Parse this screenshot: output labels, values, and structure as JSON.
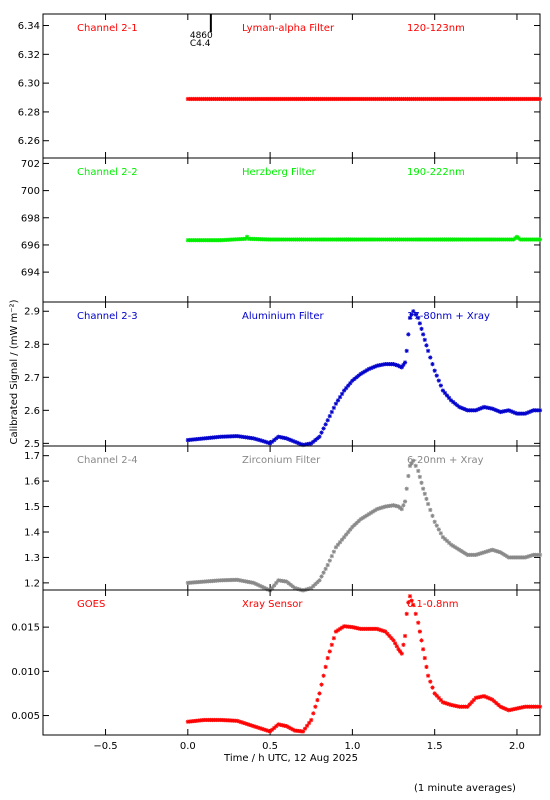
{
  "chart_data": {
    "type": "scatter",
    "xlabel": "Time / h UTC, 12 Aug 2025",
    "ylabel": "Calibrated Signal / (mW m⁻²)",
    "footnote": "(1 minute averages)",
    "xlim": [
      -0.88,
      2.14
    ],
    "xticks": [
      -0.5,
      0.0,
      0.5,
      1.0,
      1.5,
      2.0
    ],
    "xticklabels": [
      "−0.5",
      "0.0",
      "0.5",
      "1.0",
      "1.5",
      "2.0"
    ],
    "marker": "asterisk",
    "annotation": {
      "x": 0.14,
      "y": 6.347,
      "lines": [
        "4860",
        "C4.4"
      ]
    },
    "panels": [
      {
        "channel": "Channel 2-1",
        "filter": "Lyman-alpha Filter",
        "band": "120-123nm",
        "color": "#ff0000",
        "ylim": [
          6.248,
          6.348
        ],
        "yticks": [
          6.26,
          6.28,
          6.3,
          6.32,
          6.34
        ],
        "yticklabels": [
          "6.26",
          "6.28",
          "6.30",
          "6.32",
          "6.34"
        ],
        "series": {
          "x": [
            0.0,
            2.14
          ],
          "y": [
            6.289,
            6.289
          ]
        }
      },
      {
        "channel": "Channel 2-2",
        "filter": "Herzberg Filter",
        "band": "190-222nm",
        "color": "#00ee00",
        "ylim": [
          691.8,
          702.4
        ],
        "yticks": [
          694,
          696,
          698,
          700,
          702
        ],
        "yticklabels": [
          "694",
          "696",
          "698",
          "700",
          "702"
        ],
        "series": {
          "x": [
            0.0,
            0.2,
            0.35,
            0.36,
            0.37,
            0.5,
            1.0,
            1.5,
            1.98,
            2.0,
            2.02,
            2.14
          ],
          "y": [
            696.35,
            696.35,
            696.45,
            696.6,
            696.45,
            696.4,
            696.4,
            696.4,
            696.4,
            696.6,
            696.4,
            696.4
          ]
        }
      },
      {
        "channel": "Channel 2-3",
        "filter": "Aluminium Filter",
        "band": "17-80nm + Xray",
        "color": "#0000cc",
        "ylim": [
          2.492,
          2.928
        ],
        "yticks": [
          2.5,
          2.6,
          2.7,
          2.8,
          2.9
        ],
        "yticklabels": [
          "2.5",
          "2.6",
          "2.7",
          "2.8",
          "2.9"
        ],
        "series": {
          "x": [
            0.0,
            0.1,
            0.2,
            0.3,
            0.4,
            0.45,
            0.5,
            0.55,
            0.6,
            0.65,
            0.7,
            0.75,
            0.8,
            0.85,
            0.9,
            0.95,
            1.0,
            1.05,
            1.1,
            1.15,
            1.2,
            1.25,
            1.28,
            1.3,
            1.32,
            1.33,
            1.34,
            1.35,
            1.37,
            1.4,
            1.43,
            1.46,
            1.5,
            1.55,
            1.6,
            1.65,
            1.7,
            1.75,
            1.8,
            1.85,
            1.9,
            1.95,
            2.0,
            2.05,
            2.1,
            2.14
          ],
          "y": [
            2.51,
            2.515,
            2.52,
            2.522,
            2.515,
            2.508,
            2.5,
            2.52,
            2.515,
            2.505,
            2.495,
            2.5,
            2.52,
            2.57,
            2.62,
            2.66,
            2.69,
            2.71,
            2.725,
            2.735,
            2.74,
            2.74,
            2.735,
            2.73,
            2.745,
            2.78,
            2.83,
            2.88,
            2.9,
            2.88,
            2.83,
            2.78,
            2.72,
            2.66,
            2.63,
            2.61,
            2.6,
            2.6,
            2.61,
            2.605,
            2.595,
            2.6,
            2.59,
            2.59,
            2.6,
            2.6
          ]
        }
      },
      {
        "channel": "Channel 2-4",
        "filter": "Zirconium Filter",
        "band": "6-20nm + Xray",
        "color": "#888888",
        "ylim": [
          1.172,
          1.738
        ],
        "yticks": [
          1.2,
          1.3,
          1.4,
          1.5,
          1.6,
          1.7
        ],
        "yticklabels": [
          "1.2",
          "1.3",
          "1.4",
          "1.5",
          "1.6",
          "1.7"
        ],
        "series": {
          "x": [
            0.0,
            0.1,
            0.2,
            0.3,
            0.4,
            0.45,
            0.5,
            0.55,
            0.6,
            0.65,
            0.7,
            0.75,
            0.8,
            0.85,
            0.9,
            0.95,
            1.0,
            1.05,
            1.1,
            1.15,
            1.2,
            1.25,
            1.28,
            1.3,
            1.32,
            1.33,
            1.34,
            1.35,
            1.37,
            1.4,
            1.43,
            1.46,
            1.5,
            1.55,
            1.6,
            1.65,
            1.7,
            1.75,
            1.8,
            1.85,
            1.9,
            1.95,
            2.0,
            2.05,
            2.1,
            2.14
          ],
          "y": [
            1.2,
            1.205,
            1.21,
            1.212,
            1.2,
            1.185,
            1.17,
            1.21,
            1.205,
            1.18,
            1.17,
            1.18,
            1.21,
            1.27,
            1.34,
            1.38,
            1.42,
            1.45,
            1.47,
            1.49,
            1.5,
            1.505,
            1.5,
            1.49,
            1.52,
            1.57,
            1.62,
            1.66,
            1.68,
            1.64,
            1.57,
            1.51,
            1.44,
            1.38,
            1.35,
            1.33,
            1.31,
            1.31,
            1.32,
            1.33,
            1.32,
            1.3,
            1.3,
            1.3,
            1.31,
            1.31
          ]
        }
      },
      {
        "channel": "GOES",
        "filter": "Xray Sensor",
        "band": "0.1-0.8nm",
        "color": "#ff0000",
        "ylim": [
          0.0028,
          0.0192
        ],
        "yticks": [
          0.005,
          0.01,
          0.015
        ],
        "yticklabels": [
          "0.005",
          "0.010",
          "0.015"
        ],
        "series": {
          "x": [
            0.0,
            0.1,
            0.2,
            0.3,
            0.4,
            0.45,
            0.5,
            0.55,
            0.6,
            0.65,
            0.7,
            0.75,
            0.8,
            0.85,
            0.9,
            0.95,
            1.0,
            1.05,
            1.1,
            1.15,
            1.2,
            1.25,
            1.28,
            1.3,
            1.32,
            1.33,
            1.34,
            1.35,
            1.37,
            1.4,
            1.43,
            1.46,
            1.5,
            1.55,
            1.6,
            1.65,
            1.7,
            1.75,
            1.8,
            1.85,
            1.9,
            1.95,
            2.0,
            2.05,
            2.1,
            2.14
          ],
          "y": [
            0.0043,
            0.0045,
            0.0045,
            0.0044,
            0.0038,
            0.0035,
            0.0032,
            0.004,
            0.0038,
            0.0033,
            0.0032,
            0.0045,
            0.0075,
            0.0115,
            0.0145,
            0.0151,
            0.015,
            0.0148,
            0.0148,
            0.0148,
            0.0145,
            0.0135,
            0.0125,
            0.012,
            0.014,
            0.0165,
            0.0178,
            0.0185,
            0.0175,
            0.0155,
            0.0125,
            0.0095,
            0.0075,
            0.0065,
            0.0062,
            0.006,
            0.006,
            0.007,
            0.0072,
            0.0068,
            0.006,
            0.0056,
            0.0058,
            0.006,
            0.006,
            0.006
          ]
        }
      }
    ]
  }
}
